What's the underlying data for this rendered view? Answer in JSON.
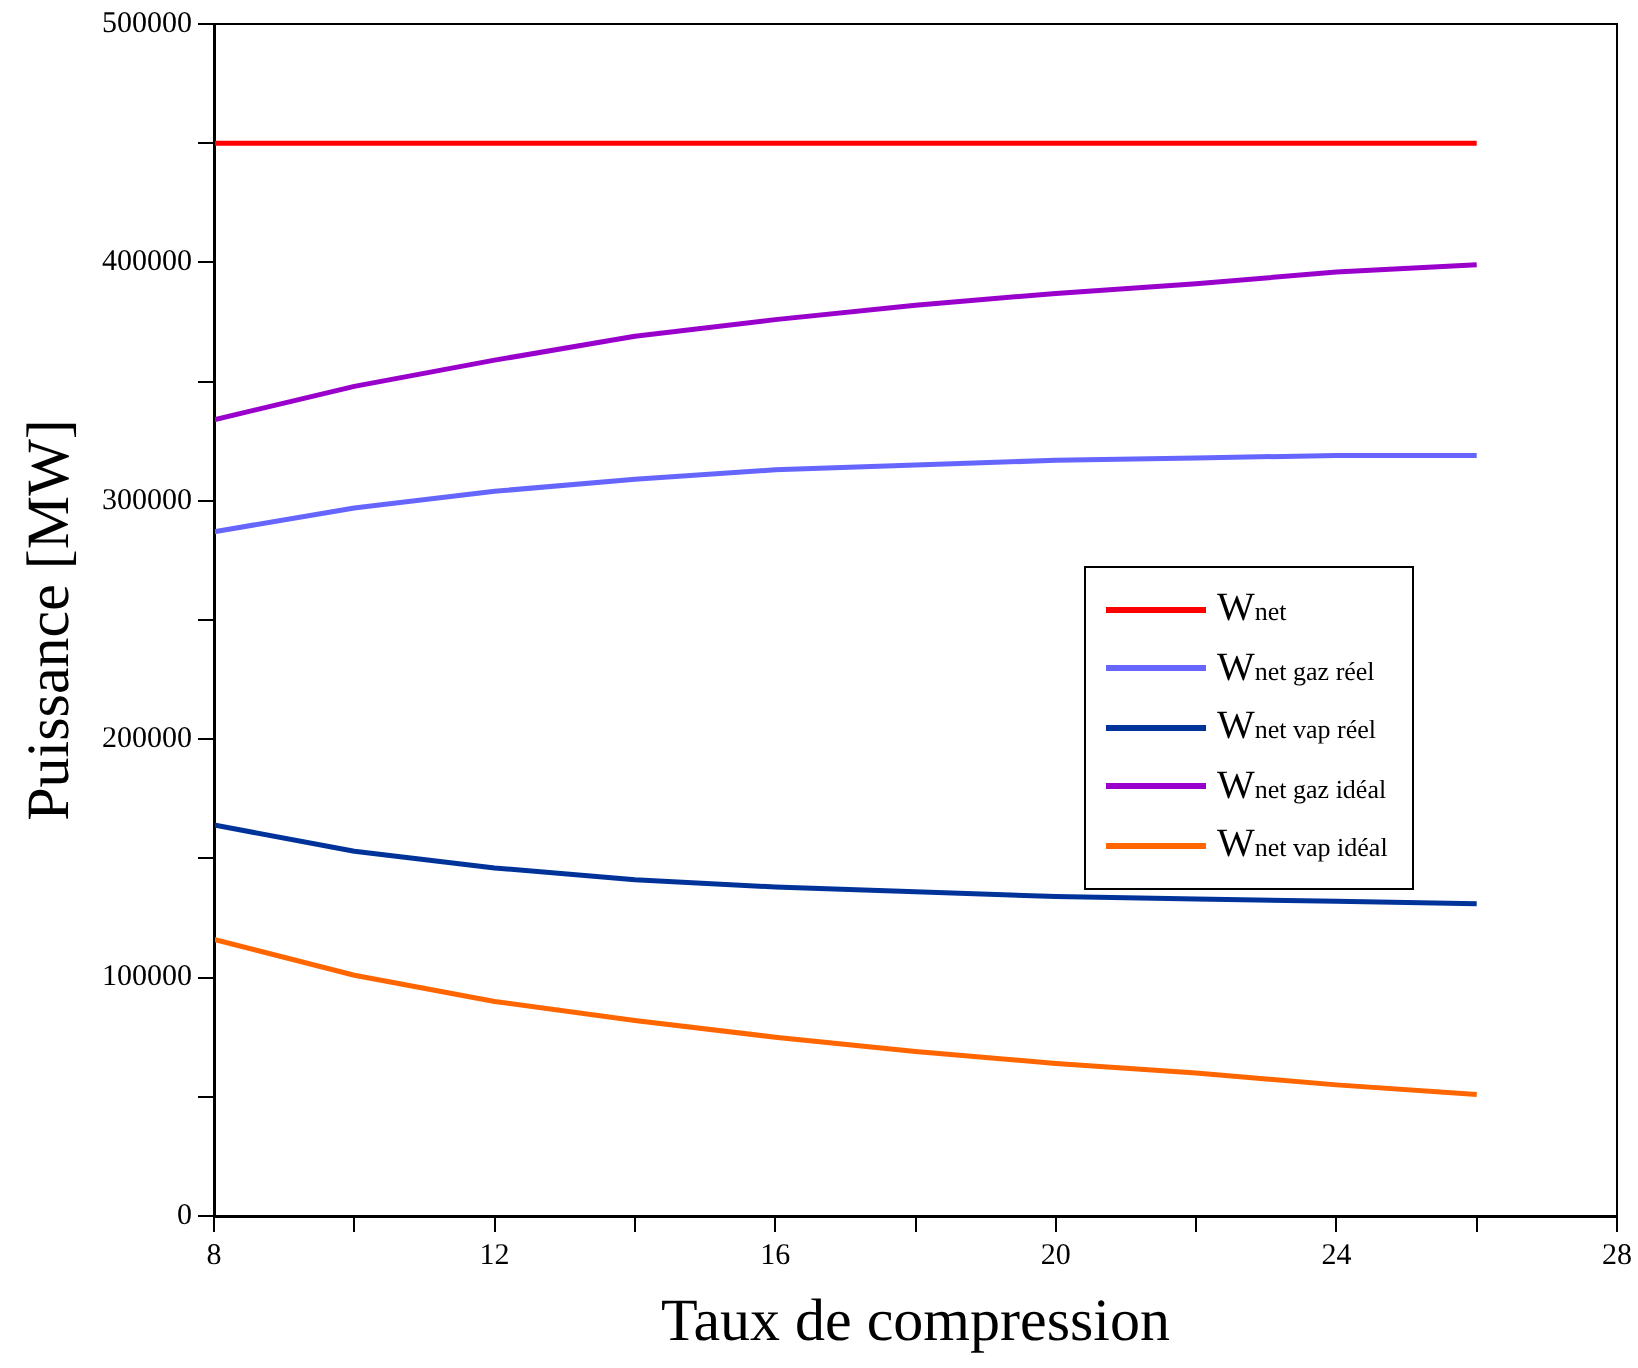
{
  "chart_data": {
    "type": "line",
    "xlabel": "Taux de compression",
    "ylabel": "Puissance [MW]",
    "x": [
      8,
      10,
      12,
      14,
      16,
      18,
      20,
      22,
      24,
      26
    ],
    "series": [
      {
        "name": "W$_{net}$",
        "color": "#ff0000",
        "values": [
          450000,
          450000,
          450000,
          450000,
          450000,
          450000,
          450000,
          450000,
          450000,
          450000
        ]
      },
      {
        "name": "W$_{net gaz réel}$",
        "color": "#6666ff",
        "values": [
          287000,
          297000,
          304000,
          309000,
          313000,
          315000,
          317000,
          318000,
          319000,
          319000
        ]
      },
      {
        "name": "W$_{net vap réel}$",
        "color": "#003399",
        "values": [
          164000,
          153000,
          146000,
          141000,
          138000,
          136000,
          134000,
          133000,
          132000,
          131000
        ]
      },
      {
        "name": "W$_{net gaz idéal}$",
        "color": "#9900cc",
        "values": [
          334000,
          348000,
          359000,
          369000,
          376000,
          382000,
          387000,
          391000,
          396000,
          399000
        ]
      },
      {
        "name": "W$_{net vap idéal}$",
        "color": "#ff6600",
        "values": [
          116000,
          101000,
          90000,
          82000,
          75000,
          69000,
          64000,
          60000,
          55000,
          51000
        ]
      }
    ],
    "xlim": [
      8,
      28
    ],
    "xticks": [
      8,
      {
        "value": 10,
        "label": null
      },
      12,
      {
        "value": 14,
        "label": null
      },
      16,
      {
        "value": 18,
        "label": null
      },
      20,
      {
        "value": 22,
        "label": null
      },
      24,
      {
        "value": 26,
        "label": null
      },
      28
    ],
    "ylim": [
      0,
      500000
    ],
    "yticks": [
      0,
      {
        "value": 50000,
        "label": null
      },
      100000,
      {
        "value": 150000,
        "label": null
      },
      200000,
      {
        "value": 250000,
        "label": null
      },
      300000,
      {
        "value": 350000,
        "label": null
      },
      400000,
      {
        "value": 450000,
        "label": null
      },
      500000
    ],
    "grid": false,
    "legend": "center right",
    "marker": "none",
    "line_style": "solid"
  }
}
